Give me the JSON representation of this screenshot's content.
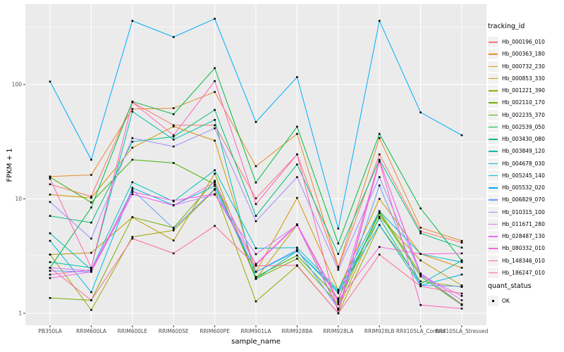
{
  "figure": {
    "y_axis_title": "FPKM + 1",
    "x_axis_title": "sample_name"
  },
  "legend": {
    "tracking_title": "tracking_id",
    "quant_title": "quant_status",
    "quant_items": [
      {
        "label": "OK",
        "marker": "filled-black-square"
      }
    ]
  },
  "colors": {
    "panel_bg": "#EBEBEB",
    "grid": "#FFFFFF",
    "axis_text": "#4D4D4D",
    "tick": "#333333",
    "marker": "#000000",
    "legend_key_bg": "#F2F2F2"
  },
  "chart_data": {
    "type": "line",
    "title": "",
    "xlabel": "sample_name",
    "ylabel": "FPKM + 1",
    "y_scale": "log10",
    "ylim": [
      0.9,
      480
    ],
    "y_ticks": [
      100,
      10,
      1
    ],
    "y_tick_labels": [
      "100",
      "10",
      "1"
    ],
    "y_minor_ticks": [
      316.2,
      31.62,
      3.162
    ],
    "grid": true,
    "legend_position": "right",
    "point_marker": "black-square",
    "categories": [
      "PB350LA",
      "RRIM600LA",
      "RRIM600LE",
      "RRIM600SE",
      "RRIM600PE",
      "RRIM901LA",
      "RRIM928BA",
      "RRIM928LA",
      "RRIM928LB",
      "RRII105LA_Control",
      "RRII105LA_Stressed"
    ],
    "series": [
      {
        "name": "Hb_000196_010",
        "color": "#F8766D",
        "values": [
          13.4,
          10.5,
          70,
          44,
          44,
          10.1,
          24.5,
          2.5,
          24.5,
          5.2,
          4.15
        ]
      },
      {
        "name": "Hb_000363_180",
        "color": "#E98A2C",
        "values": [
          15.7,
          16.2,
          61,
          62,
          86,
          19.3,
          37,
          2.55,
          34,
          5.6,
          4.3
        ]
      },
      {
        "name": "Hb_000732_230",
        "color": "#D59600",
        "values": [
          10.9,
          10.2,
          28,
          43,
          32.3,
          2.3,
          10.2,
          1.6,
          10,
          3.3,
          2.5
        ]
      },
      {
        "name": "Hb_000853_330",
        "color": "#BC9D00",
        "values": [
          3.26,
          3.38,
          6.9,
          4.33,
          16.6,
          2.0,
          5.9,
          1.1,
          7.0,
          2.9,
          1.75
        ]
      },
      {
        "name": "Hb_001221_390",
        "color": "#9DA700",
        "values": [
          3.26,
          1.07,
          4.65,
          5.3,
          12,
          1.27,
          2.6,
          1.0,
          5.9,
          1.9,
          1.7
        ]
      },
      {
        "name": "Hb_002110_170",
        "color": "#78AD00",
        "values": [
          1.36,
          1.3,
          6.93,
          5.6,
          14.4,
          2.0,
          3.0,
          1.2,
          7.8,
          2.2,
          1.2
        ]
      },
      {
        "name": "Hb_002235_370",
        "color": "#42B300",
        "values": [
          15.5,
          9.3,
          22,
          20.6,
          13.4,
          2.08,
          3.2,
          1.35,
          7.5,
          2.1,
          1.18
        ]
      },
      {
        "name": "Hb_002539_050",
        "color": "#00BA42",
        "values": [
          2.5,
          8.4,
          71,
          55,
          139,
          13.9,
          42.8,
          4.07,
          37,
          8.26,
          2.9
        ]
      },
      {
        "name": "Hb_003430_080",
        "color": "#00BE7D",
        "values": [
          7.1,
          6.2,
          31.6,
          35,
          60,
          7.1,
          20,
          3.3,
          22,
          5.0,
          3.75
        ]
      },
      {
        "name": "Hb_003849_120",
        "color": "#00C0A9",
        "values": [
          2.8,
          2.5,
          58,
          33,
          49,
          2.0,
          3.5,
          1.55,
          6.8,
          1.8,
          2.9
        ]
      },
      {
        "name": "Hb_004678_030",
        "color": "#00BFC4",
        "values": [
          5.0,
          2.4,
          14,
          9.5,
          17.8,
          3.7,
          3.75,
          1.6,
          7.8,
          3.3,
          2.8
        ]
      },
      {
        "name": "Hb_005245_140",
        "color": "#00B8E5",
        "values": [
          4.3,
          1.53,
          12.5,
          8.8,
          13,
          2.3,
          3.5,
          1.5,
          5.9,
          1.75,
          2.18
        ]
      },
      {
        "name": "Hb_005532_020",
        "color": "#00ACFC",
        "values": [
          106,
          22,
          360,
          260,
          375,
          47,
          116,
          5.5,
          360,
          57,
          36
        ]
      },
      {
        "name": "Hb_006829_070",
        "color": "#619CFF",
        "values": [
          2.35,
          2.3,
          12,
          5.5,
          12.2,
          2.3,
          3.6,
          1.1,
          13.1,
          1.75,
          1.72
        ]
      },
      {
        "name": "Hb_010315_100",
        "color": "#A58AFF",
        "values": [
          9.4,
          4.5,
          34,
          28.7,
          41.4,
          6.37,
          15.5,
          2.4,
          15.5,
          2.2,
          1.18
        ]
      },
      {
        "name": "Hb_011671_280",
        "color": "#CF78FF",
        "values": [
          2.5,
          2.35,
          11,
          8.8,
          10.9,
          3.29,
          5.9,
          1.07,
          21.5,
          2.23,
          1.3
        ]
      },
      {
        "name": "Hb_028487_130",
        "color": "#EB68F0",
        "values": [
          2.03,
          2.3,
          11,
          8.76,
          14,
          2.65,
          5.9,
          1.25,
          21.8,
          2.13,
          1.42
        ]
      },
      {
        "name": "Hb_080332_010",
        "color": "#FA62DB",
        "values": [
          2.18,
          2.4,
          11.5,
          9.66,
          11,
          2.7,
          6.0,
          1.3,
          3.8,
          3.3,
          3.34
        ]
      },
      {
        "name": "Hb_148346_010",
        "color": "#FF61BB",
        "values": [
          15,
          2.5,
          70,
          36,
          107,
          9.0,
          24.5,
          1.0,
          21.2,
          1.18,
          1.1
        ]
      },
      {
        "name": "Hb_186247_010",
        "color": "#FF6A98",
        "values": [
          2.5,
          1.3,
          4.5,
          3.34,
          5.8,
          2.6,
          2.63,
          1.0,
          3.26,
          1.72,
          1.49
        ]
      }
    ]
  }
}
